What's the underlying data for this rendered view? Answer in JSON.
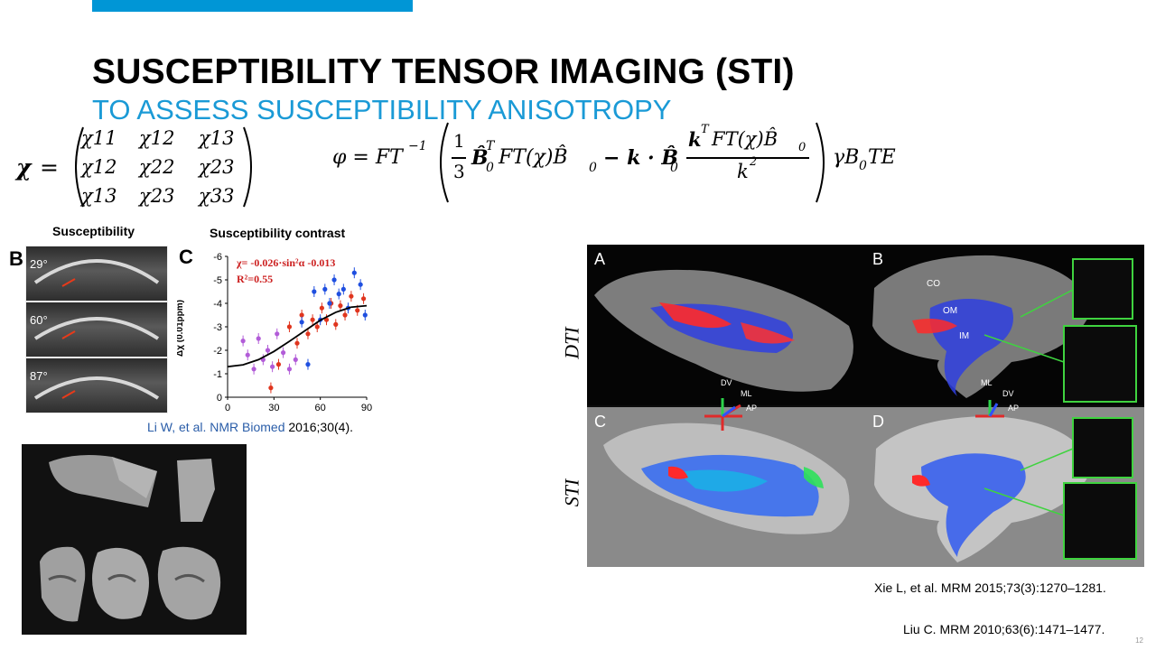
{
  "slide": {
    "title": "SUSCEPTIBILITY TENSOR IMAGING (STI)",
    "subtitle": "TO ASSESS SUSCEPTIBILITY ANISOTROPY",
    "accent_color": "#0096d6",
    "subtitle_color": "#1a9ad6",
    "slide_number": "12"
  },
  "equations": {
    "tensor_lhs": "χ",
    "tensor_eq": "=",
    "tensor_cells": [
      [
        "χ11",
        "χ12",
        "χ13"
      ],
      [
        "χ12",
        "χ22",
        "χ23"
      ],
      [
        "χ13",
        "χ23",
        "χ33"
      ]
    ],
    "phi_lhs": "φ = FT",
    "phi_inv": "−1",
    "phi_frac_num": "1",
    "phi_frac_den": "3",
    "phi_term1": "B̂",
    "phi_term1_sup": "T",
    "phi_term1_sub": "0",
    "phi_term2": "FT(χ)B̂",
    "phi_term2_sub": "0",
    "phi_minus": "− k · B̂",
    "phi_minus_sub": "0",
    "phi_kfrac_num": "k",
    "phi_kfrac_num_sup": "T",
    "phi_kfrac_num_rest": "FT(χ)B̂",
    "phi_kfrac_num_sub": "0",
    "phi_kfrac_den": "k",
    "phi_kfrac_den_sup": "2",
    "phi_tail": "γB",
    "phi_tail_sub": "0",
    "phi_tail_rest": "TE"
  },
  "figure_left": {
    "panel_b_header": "Susceptibility",
    "panel_b_label": "B",
    "angles": [
      "29°",
      "60°",
      "87°"
    ],
    "panel_c_header": "Susceptibility contrast",
    "panel_c_label": "C",
    "fit_equation": "χ=  -0.026·sin²α -0.013",
    "r_squared": "R²=0.55",
    "fit_color": "#cc1f1f",
    "ylabel": "Δχ (0.01ppm)"
  },
  "chart_data": {
    "type": "scatter",
    "xlim": [
      0,
      90
    ],
    "ylim": [
      0,
      -6
    ],
    "xticks": [
      0,
      30,
      60,
      90
    ],
    "yticks": [
      0,
      -1,
      -2,
      -3,
      -4,
      -5,
      -6
    ],
    "ylabel": "Δχ (0.01ppm)",
    "series": [
      {
        "color": "#b25cd8",
        "x": [
          10,
          13,
          17,
          20,
          23,
          26,
          29,
          32,
          36,
          40,
          44
        ],
        "y": [
          -2.4,
          -1.8,
          -1.2,
          -2.5,
          -1.6,
          -2.0,
          -1.3,
          -2.7,
          -1.9,
          -1.2,
          -1.6
        ]
      },
      {
        "color": "#e0351e",
        "x": [
          28,
          33,
          40,
          45,
          48,
          52,
          55,
          58,
          61,
          64,
          67,
          70,
          73,
          76,
          80,
          84,
          88
        ],
        "y": [
          -0.4,
          -1.4,
          -3.0,
          -2.3,
          -3.5,
          -2.7,
          -3.3,
          -3.0,
          -3.8,
          -3.3,
          -4.0,
          -3.1,
          -3.9,
          -3.5,
          -4.3,
          -3.7,
          -4.2
        ]
      },
      {
        "color": "#1f4fe0",
        "x": [
          48,
          52,
          56,
          60,
          63,
          66,
          69,
          72,
          75,
          78,
          82,
          86,
          89
        ],
        "y": [
          -3.2,
          -1.4,
          -4.5,
          -3.3,
          -4.6,
          -4.0,
          -5.0,
          -4.4,
          -4.6,
          -3.8,
          -5.3,
          -4.8,
          -3.5
        ]
      }
    ],
    "fit_curve": {
      "color": "#000000",
      "x": [
        0,
        10,
        20,
        30,
        40,
        50,
        60,
        70,
        80,
        90
      ],
      "y": [
        -1.3,
        -1.38,
        -1.6,
        -1.95,
        -2.38,
        -2.83,
        -3.28,
        -3.62,
        -3.84,
        -3.9
      ]
    }
  },
  "citations": {
    "left_pre": "Li W, et al. NMR Biomed ",
    "left_post": "2016;30(4).",
    "right_1": "Xie L, et al. MRM 2015;73(3):1270–1281.",
    "right_2": "Liu C. MRM 2010;63(6):1471–1477."
  },
  "figure_right": {
    "row_labels": [
      "DTI",
      "STI"
    ],
    "panel_labels": [
      "A",
      "B",
      "C",
      "D"
    ],
    "region_labels": [
      "CO",
      "OM",
      "IM"
    ],
    "axis_labels_left": [
      "DV",
      "ML",
      "AP"
    ],
    "axis_labels_right": [
      "ML",
      "DV",
      "AP"
    ],
    "inset_color": "#3fd33f"
  }
}
